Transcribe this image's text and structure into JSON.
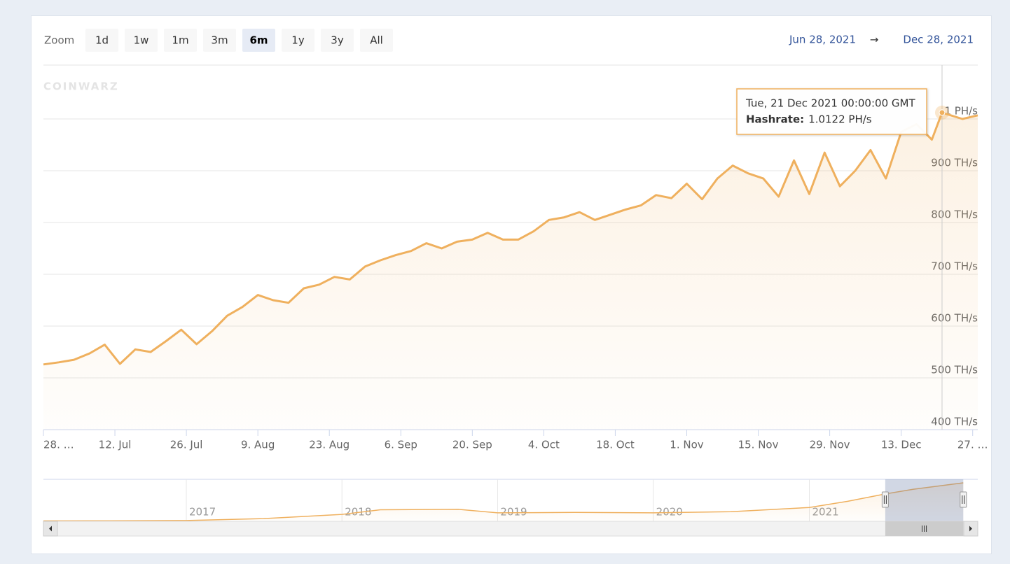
{
  "chart_data": {
    "type": "line",
    "zoom_label": "Zoom",
    "buttons": [
      {
        "label": "1d"
      },
      {
        "label": "1w"
      },
      {
        "label": "1m"
      },
      {
        "label": "3m"
      },
      {
        "label": "6m",
        "selected": true
      },
      {
        "label": "1y"
      },
      {
        "label": "3y"
      },
      {
        "label": "All"
      }
    ],
    "range_from": "Jun 28, 2021",
    "range_arrow": "→",
    "range_to": "Dec 28, 2021",
    "watermark": "COINWARZ",
    "x": [
      "2021-06-28",
      "2021-07-01",
      "2021-07-04",
      "2021-07-07",
      "2021-07-10",
      "2021-07-13",
      "2021-07-16",
      "2021-07-19",
      "2021-07-22",
      "2021-07-25",
      "2021-07-28",
      "2021-07-31",
      "2021-08-03",
      "2021-08-06",
      "2021-08-09",
      "2021-08-12",
      "2021-08-15",
      "2021-08-18",
      "2021-08-21",
      "2021-08-24",
      "2021-08-27",
      "2021-08-30",
      "2021-09-02",
      "2021-09-05",
      "2021-09-08",
      "2021-09-11",
      "2021-09-14",
      "2021-09-17",
      "2021-09-20",
      "2021-09-23",
      "2021-09-26",
      "2021-09-29",
      "2021-10-02",
      "2021-10-05",
      "2021-10-08",
      "2021-10-11",
      "2021-10-14",
      "2021-10-17",
      "2021-10-20",
      "2021-10-23",
      "2021-10-26",
      "2021-10-29",
      "2021-11-01",
      "2021-11-04",
      "2021-11-07",
      "2021-11-10",
      "2021-11-13",
      "2021-11-16",
      "2021-11-19",
      "2021-11-22",
      "2021-11-25",
      "2021-11-28",
      "2021-12-01",
      "2021-12-04",
      "2021-12-07",
      "2021-12-10",
      "2021-12-13",
      "2021-12-16",
      "2021-12-19",
      "2021-12-21",
      "2021-12-25",
      "2021-12-28"
    ],
    "series": [
      {
        "color": "#efb05e",
        "values": [
          526,
          530,
          535,
          547,
          564,
          527,
          555,
          550,
          571,
          593,
          565,
          590,
          620,
          637,
          660,
          650,
          645,
          673,
          680,
          695,
          690,
          715,
          727,
          737,
          745,
          760,
          750,
          763,
          767,
          780,
          767,
          767,
          783,
          805,
          810,
          820,
          805,
          815,
          825,
          833,
          853,
          847,
          875,
          845,
          885,
          910,
          895,
          885,
          850,
          920,
          855,
          935,
          870,
          900,
          940,
          885,
          975,
          990,
          960,
          1012.2,
          1000,
          1007
        ]
      }
    ],
    "xlim": [
      "2021-06-28",
      "2021-12-28"
    ],
    "xticks": [
      {
        "value": "2021-06-28",
        "label": "28. …"
      },
      {
        "value": "2021-07-12",
        "label": "12. Jul"
      },
      {
        "value": "2021-07-26",
        "label": "26. Jul"
      },
      {
        "value": "2021-08-09",
        "label": "9. Aug"
      },
      {
        "value": "2021-08-23",
        "label": "23. Aug"
      },
      {
        "value": "2021-09-06",
        "label": "6. Sep"
      },
      {
        "value": "2021-09-20",
        "label": "20. Sep"
      },
      {
        "value": "2021-10-04",
        "label": "4. Oct"
      },
      {
        "value": "2021-10-18",
        "label": "18. Oct"
      },
      {
        "value": "2021-11-01",
        "label": "1. Nov"
      },
      {
        "value": "2021-11-15",
        "label": "15. Nov"
      },
      {
        "value": "2021-11-29",
        "label": "29. Nov"
      },
      {
        "value": "2021-12-13",
        "label": "13. Dec"
      },
      {
        "value": "2021-12-27",
        "label": "27. …"
      }
    ],
    "ylim": [
      400,
      1104
    ],
    "yticks": [
      {
        "value": 400,
        "label": "400 TH/s"
      },
      {
        "value": 500,
        "label": "500 TH/s"
      },
      {
        "value": 600,
        "label": "600 TH/s"
      },
      {
        "value": 700,
        "label": "700 TH/s"
      },
      {
        "value": 800,
        "label": "800 TH/s"
      },
      {
        "value": 900,
        "label": "900 TH/s"
      },
      {
        "value": 1000,
        "label": "1 PH/s"
      }
    ],
    "grid": true,
    "tooltip": {
      "x": "2021-12-21",
      "date": "Tue, 21 Dec 2021 00:00:00 GMT",
      "label": "Hashrate:",
      "value": 1012.2,
      "value_label": "1.0122 PH/s"
    },
    "navigator": {
      "x": [
        "2016-02-01",
        "2016-07-01",
        "2017-01-01",
        "2017-07-01",
        "2018-01-01",
        "2018-04-01",
        "2018-10-01",
        "2019-01-01",
        "2019-07-01",
        "2020-01-01",
        "2020-07-01",
        "2021-01-01",
        "2021-04-01",
        "2021-06-28",
        "2021-09-01",
        "2021-12-28"
      ],
      "values": [
        10,
        15,
        20,
        70,
        180,
        300,
        310,
        220,
        230,
        220,
        250,
        360,
        520,
        710,
        830,
        1000
      ],
      "xlim": [
        "2016-02-01",
        "2022-01-31"
      ],
      "ylim": [
        0,
        1090
      ],
      "xticks": [
        {
          "value": "2017-01-01",
          "label": "2017"
        },
        {
          "value": "2018-01-01",
          "label": "2018"
        },
        {
          "value": "2019-01-01",
          "label": "2019"
        },
        {
          "value": "2020-01-01",
          "label": "2020"
        },
        {
          "value": "2021-01-01",
          "label": "2021"
        }
      ]
    }
  }
}
